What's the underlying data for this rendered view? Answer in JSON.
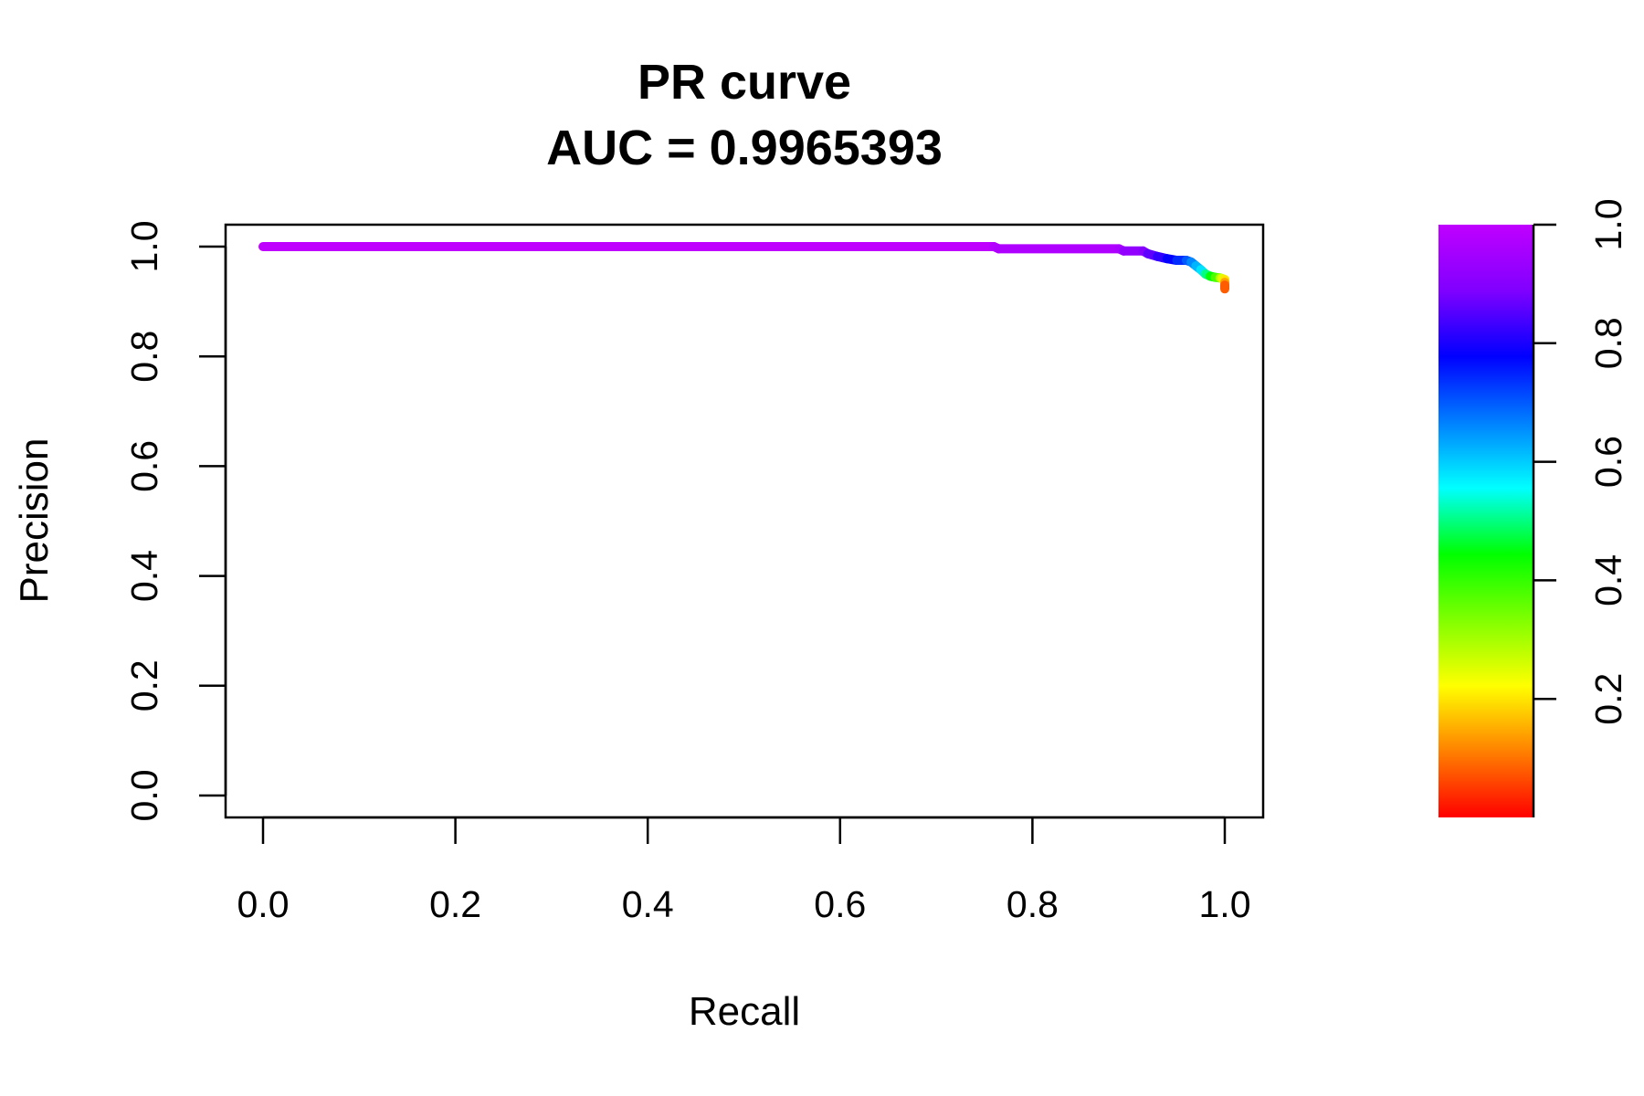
{
  "chart_data": {
    "type": "line",
    "title": "PR curve",
    "subtitle": "AUC = 0.9965393",
    "xlabel": "Recall",
    "ylabel": "Precision",
    "xlim": [
      0,
      1
    ],
    "ylim": [
      0,
      1
    ],
    "grid": false,
    "x_ticks": [
      "0.0",
      "0.2",
      "0.4",
      "0.6",
      "0.8",
      "1.0"
    ],
    "y_ticks": [
      "0.0",
      "0.2",
      "0.4",
      "0.6",
      "0.8",
      "1.0"
    ],
    "colorbar": {
      "range": [
        0,
        1
      ],
      "ticks": [
        "0.2",
        "0.4",
        "0.6",
        "0.8",
        "1.0"
      ],
      "colors": [
        "#ff0000",
        "#ff8000",
        "#ffff00",
        "#80ff00",
        "#00ff00",
        "#00ffff",
        "#0080ff",
        "#0000ff",
        "#8000ff",
        "#c000ff"
      ]
    },
    "series": [
      {
        "recall": [
          0.0,
          0.76,
          0.765,
          0.89,
          0.895,
          0.915,
          0.92,
          0.93,
          0.94,
          0.95,
          0.96,
          0.965,
          0.97,
          0.975,
          0.98,
          0.985,
          0.99,
          0.995,
          0.997,
          1.0,
          1.0,
          1.0,
          1.0
        ],
        "precision": [
          1.0,
          1.0,
          0.996,
          0.996,
          0.992,
          0.992,
          0.987,
          0.982,
          0.978,
          0.975,
          0.975,
          0.972,
          0.965,
          0.958,
          0.95,
          0.946,
          0.944,
          0.943,
          0.942,
          0.94,
          0.935,
          0.93,
          0.923
        ],
        "threshold": [
          1.0,
          0.98,
          0.97,
          0.96,
          0.92,
          0.9,
          0.86,
          0.82,
          0.78,
          0.74,
          0.7,
          0.66,
          0.62,
          0.58,
          0.5,
          0.44,
          0.38,
          0.3,
          0.25,
          0.2,
          0.14,
          0.08,
          0.02
        ]
      }
    ]
  }
}
